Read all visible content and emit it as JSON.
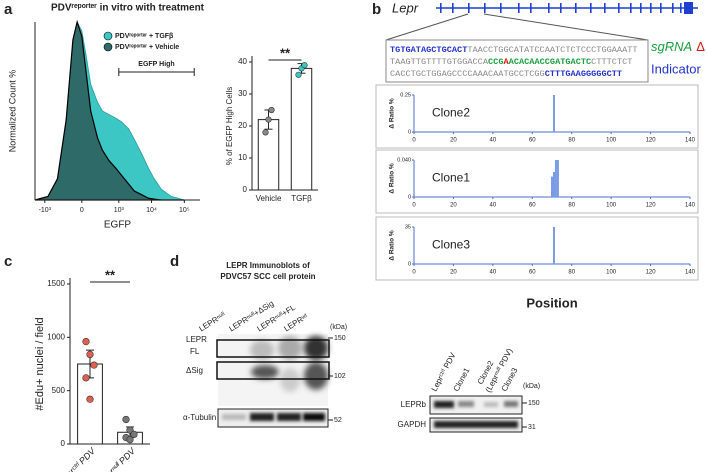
{
  "panel_labels": [
    "a",
    "b",
    "c",
    "d"
  ],
  "gene": {
    "label": "Lepr"
  },
  "sequence": {
    "lines": [
      [
        {
          "text": "TGTGATAGCTGCACT",
          "role": "indicator"
        },
        {
          "text": "TAACCTGGCATATCCAATCTCTCCCTGGAAATT",
          "role": "plain"
        }
      ],
      [
        {
          "text": "TAAGTTGTTTTGTGGACCA",
          "role": "plain"
        },
        {
          "text": "CCG",
          "role": "sgrna"
        },
        {
          "text": "A",
          "role": "deletion"
        },
        {
          "text": "ACACAACCGATGACTC",
          "role": "sgrna"
        },
        {
          "text": "CTTTCTCT",
          "role": "plain"
        }
      ],
      [
        {
          "text": "CACCTGCTGGAGCCCCAAACAATGCCTCGG",
          "role": "plain"
        },
        {
          "text": "CTTTGAAGGGGGCTT",
          "role": "indicator"
        }
      ]
    ],
    "legend": {
      "sgrna": "sgRNA",
      "deletion": "Δ",
      "indicator": "Indicator"
    }
  },
  "chart_data": [
    {
      "type": "area",
      "title": "PDVʳᵉᵖᵒʳᵗᵉʳ in vitro with treatment",
      "ylabel": "Normalized Count %",
      "xlabel": "EGFP",
      "xscale": "asinh",
      "xlim": [
        -2000,
        300000
      ],
      "ylim": [
        0,
        100
      ],
      "xticks": [
        {
          "value": -1000,
          "label": "-10³"
        },
        0,
        {
          "value": 1000,
          "label": "10³"
        },
        {
          "value": 10000,
          "label": "10⁴"
        },
        {
          "value": 100000,
          "label": "10⁵"
        }
      ],
      "legend": "upper right",
      "gate": {
        "label": "EGFP High",
        "range": [
          1000,
          200000
        ]
      },
      "x": [
        -2000,
        -800,
        -400,
        -200,
        -100,
        -50,
        0,
        50,
        100,
        200,
        300,
        500,
        800,
        1200,
        2000,
        3000,
        5000,
        8000,
        12000,
        20000,
        40000,
        100000
      ],
      "series": [
        {
          "name": "PDVʳᵉᵖᵒʳᵗᵉʳ + TGFβ",
          "color": "#3cc6c4",
          "values": [
            0,
            2,
            10,
            40,
            85,
            100,
            95,
            80,
            65,
            55,
            50,
            48,
            46,
            44,
            40,
            34,
            26,
            18,
            12,
            6,
            2,
            0
          ]
        },
        {
          "name": "PDVʳᵉᵖᵒʳᵗᵉʳ + Vehicle",
          "color": "#2e6b68",
          "values": [
            0,
            2,
            12,
            45,
            90,
            100,
            92,
            70,
            50,
            35,
            28,
            22,
            18,
            14,
            9,
            5,
            3,
            1,
            0.5,
            0,
            0,
            0
          ]
        }
      ]
    },
    {
      "type": "bar",
      "ylabel": "% of EGFP High Cells",
      "categories": [
        "Vehicle",
        "TGFβ"
      ],
      "values": [
        22,
        38
      ],
      "errors": [
        3,
        1.5
      ],
      "points": [
        [
          18,
          22,
          25
        ],
        [
          36,
          38,
          39
        ]
      ],
      "point_colors": [
        "#8a8a8a",
        "#3cc6c4"
      ],
      "ylim": [
        0,
        40
      ],
      "yticks": [
        0,
        10,
        20,
        30,
        40
      ],
      "significance": "**"
    },
    {
      "type": "bar",
      "label": "Clone2",
      "ylabel": "Δ Ratio %",
      "x": [
        71
      ],
      "values": [
        0.25
      ],
      "color": "#7a9ce6",
      "xlim": [
        0,
        140
      ],
      "xticks": [
        0,
        20,
        40,
        60,
        80,
        100,
        120,
        140
      ],
      "ylim": [
        0,
        0.25
      ],
      "yticks": [
        0,
        0.25
      ]
    },
    {
      "type": "bar",
      "label": "Clone1",
      "ylabel": "Δ Ratio %",
      "x": [
        70,
        71,
        72,
        73
      ],
      "values": [
        0.022,
        0.027,
        0.04,
        0.04
      ],
      "color": "#7a9ce6",
      "xlim": [
        0,
        140
      ],
      "xticks": [
        0,
        20,
        40,
        60,
        80,
        100,
        120,
        140
      ],
      "ylim": [
        0,
        0.04
      ],
      "yticks": [
        0,
        {
          "value": 0.04,
          "label": "0.040"
        }
      ]
    },
    {
      "type": "bar",
      "label": "Clone3",
      "ylabel": "Δ Ratio %",
      "xlabel": "Position",
      "x": [
        71
      ],
      "values": [
        35
      ],
      "color": "#7a9ce6",
      "xlim": [
        0,
        140
      ],
      "xticks": [
        0,
        20,
        40,
        60,
        80,
        100,
        120,
        140
      ],
      "ylim": [
        0,
        35
      ],
      "yticks": [
        0,
        35
      ]
    },
    {
      "type": "bar",
      "ylabel": "#Edu+ nuclei / field",
      "categories": [
        "Leprᶜᵗʳˡ PDV",
        "Leprⁿᵘˡˡ PDV"
      ],
      "values": [
        750,
        110
      ],
      "errors": [
        130,
        50
      ],
      "points": [
        [
          960,
          840,
          740,
          620,
          420
        ],
        [
          230,
          130,
          90,
          60,
          40
        ]
      ],
      "point_colors": [
        "#e06050",
        "#777777"
      ],
      "ylim": [
        0,
        1500
      ],
      "yticks": [
        0,
        500,
        1000,
        1500
      ],
      "significance": "**"
    }
  ],
  "blot_d": {
    "title": [
      "LEPR Immunoblots of",
      "PDVC57 SCC cell protein"
    ],
    "lanes": [
      "LEPRⁿᵘˡˡ",
      "LEPRⁿᵘˡˡ+ΔSig",
      "LEPRⁿᵘˡˡ+FL",
      "LEPRʷᵗ"
    ],
    "kda_label": "(kDa)",
    "markers": [
      150,
      102,
      52
    ],
    "labels": [
      "LEPR",
      "FL",
      "ΔSig",
      "α-Tubulin"
    ]
  },
  "blot_right": {
    "lanes": [
      "Leprᶜᵗʳˡ PDV",
      "Clone1",
      "Clone2",
      "(Leprⁿᵘˡˡ PDV)",
      "Clone3"
    ],
    "kda_label": "(kDa)",
    "markers": [
      150,
      31
    ],
    "labels": [
      "LEPRb",
      "GAPDH"
    ]
  }
}
